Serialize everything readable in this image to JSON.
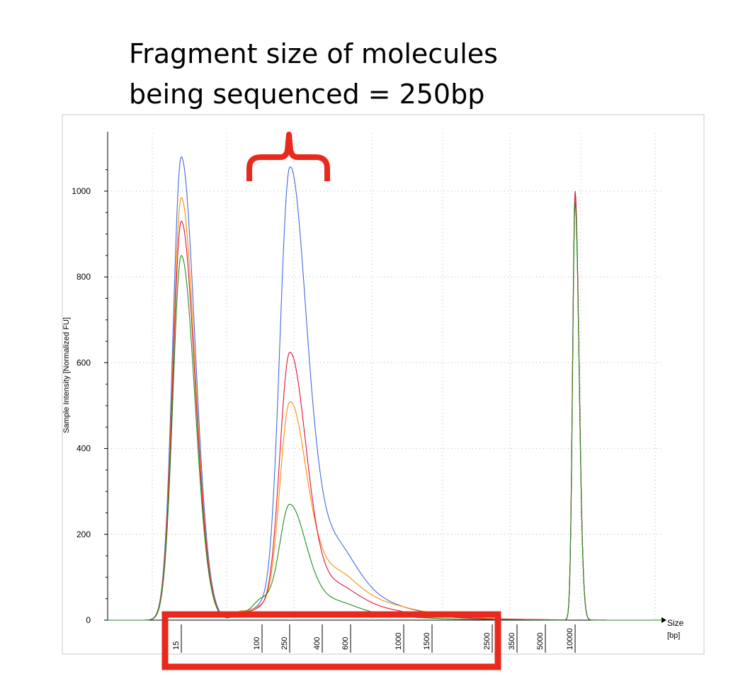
{
  "headline": {
    "line1": "Fragment size of molecules",
    "line2": "being sequenced = 250bp"
  },
  "chart_data": {
    "type": "line",
    "title": "",
    "ylabel": "Sample Intensity [Normalized FU]",
    "xlabel": "Size",
    "xlabel_unit": "[bp]",
    "ylim": [
      0,
      1100
    ],
    "yticks": [
      0,
      200,
      400,
      600,
      800,
      1000
    ],
    "x_scale": "ladder (non-linear, base pairs)",
    "x_ladder": [
      15,
      100,
      250,
      400,
      600,
      1000,
      1500,
      2500,
      3500,
      5000,
      10000
    ],
    "grid": true,
    "legend": "none",
    "series": [
      {
        "color": "#4169e1",
        "points": [
          [
            15,
            1080
          ],
          [
            35,
            20
          ],
          [
            100,
            25
          ],
          [
            250,
            1025
          ],
          [
            400,
            170
          ],
          [
            600,
            45
          ],
          [
            1000,
            18
          ],
          [
            2500,
            2
          ],
          [
            10000,
            985
          ]
        ]
      },
      {
        "color": "#ff8c00",
        "points": [
          [
            15,
            985
          ],
          [
            35,
            20
          ],
          [
            100,
            25
          ],
          [
            250,
            490
          ],
          [
            400,
            95
          ],
          [
            600,
            40
          ],
          [
            1000,
            20
          ],
          [
            2500,
            2
          ],
          [
            10000,
            980
          ]
        ]
      },
      {
        "color": "#dc143c",
        "points": [
          [
            15,
            930
          ],
          [
            35,
            18
          ],
          [
            100,
            22
          ],
          [
            250,
            610
          ],
          [
            400,
            70
          ],
          [
            600,
            28
          ],
          [
            1000,
            12
          ],
          [
            2500,
            2
          ],
          [
            10000,
            1000
          ]
        ]
      },
      {
        "color": "#228b22",
        "points": [
          [
            15,
            850
          ],
          [
            35,
            15
          ],
          [
            100,
            45
          ],
          [
            250,
            258
          ],
          [
            400,
            40
          ],
          [
            600,
            12
          ],
          [
            1000,
            5
          ],
          [
            2500,
            1
          ],
          [
            10000,
            975
          ]
        ]
      }
    ]
  },
  "annotations": {
    "brace_color": "#e8291c",
    "highlight_box_color": "#e8291c"
  }
}
